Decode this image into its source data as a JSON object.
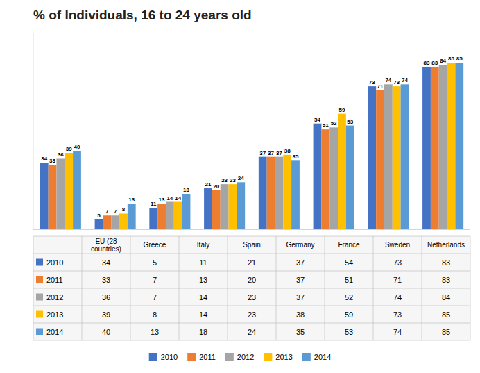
{
  "chart_data": {
    "type": "bar",
    "title": "% of Individuals, 16 to 24 years old",
    "categories": [
      "EU (28\ncountries)",
      "Greece",
      "Italy",
      "Spain",
      "Germany",
      "France",
      "Sweden",
      "Netherlands"
    ],
    "series": [
      {
        "name": "2010",
        "color": "#4472C4",
        "values": [
          34,
          5,
          11,
          21,
          37,
          54,
          73,
          83
        ]
      },
      {
        "name": "2011",
        "color": "#ED7D31",
        "values": [
          33,
          7,
          13,
          20,
          37,
          51,
          71,
          83
        ]
      },
      {
        "name": "2012",
        "color": "#A5A5A5",
        "values": [
          36,
          7,
          14,
          23,
          37,
          52,
          74,
          84
        ]
      },
      {
        "name": "2013",
        "color": "#FFC000",
        "values": [
          39,
          8,
          14,
          23,
          38,
          59,
          73,
          85
        ]
      },
      {
        "name": "2014",
        "color": "#5B9BD5",
        "values": [
          40,
          13,
          18,
          24,
          35,
          53,
          74,
          85
        ]
      }
    ],
    "ylim": [
      0,
      100
    ],
    "tick_labels": false,
    "grid": false,
    "data_labels": true,
    "legend": "bottom"
  }
}
